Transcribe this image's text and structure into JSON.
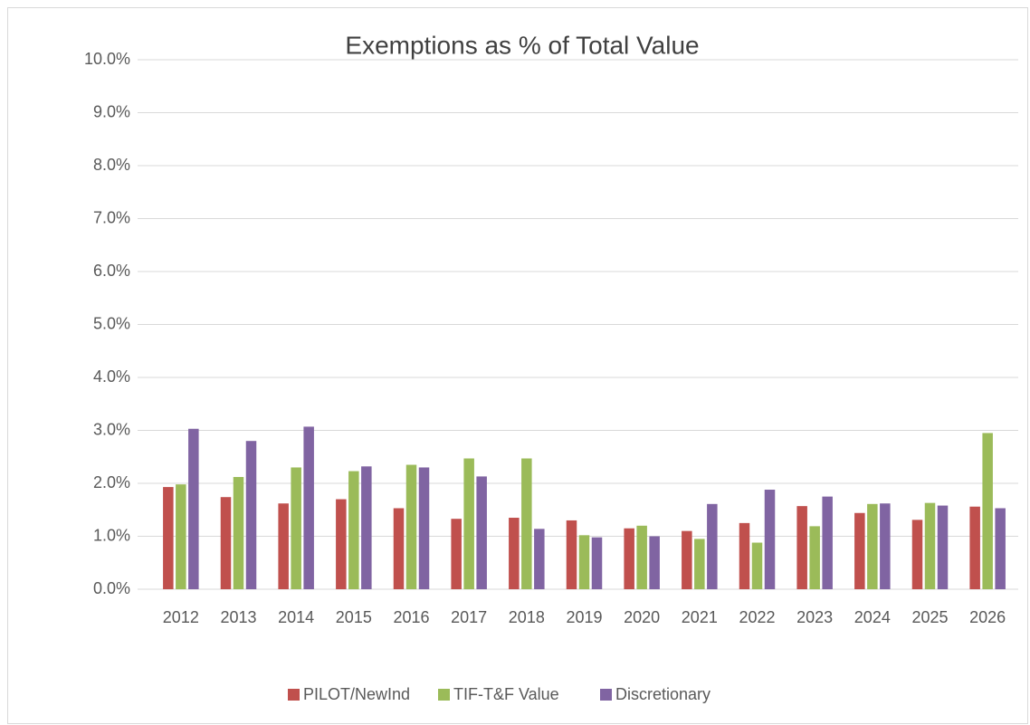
{
  "chart_data": {
    "type": "bar",
    "title": "Exemptions as % of Total Value",
    "categories": [
      "2012",
      "2013",
      "2014",
      "2015",
      "2016",
      "2017",
      "2018",
      "2019",
      "2020",
      "2021",
      "2022",
      "2023",
      "2024",
      "2025",
      "2026"
    ],
    "series": [
      {
        "name": "PILOT/NewInd",
        "color": "#c0504d",
        "values": [
          1.93,
          1.74,
          1.62,
          1.7,
          1.53,
          1.33,
          1.35,
          1.3,
          1.15,
          1.1,
          1.25,
          1.57,
          1.44,
          1.31,
          1.56
        ]
      },
      {
        "name": "TIF-T&F Value",
        "color": "#9bbb59",
        "values": [
          1.98,
          2.12,
          2.3,
          2.23,
          2.35,
          2.47,
          2.47,
          1.02,
          1.2,
          0.95,
          0.88,
          1.19,
          1.61,
          1.63,
          2.95
        ]
      },
      {
        "name": "Discretionary",
        "color": "#8064a2",
        "values": [
          3.03,
          2.8,
          3.07,
          2.32,
          2.3,
          2.13,
          1.14,
          0.98,
          1.0,
          1.61,
          1.88,
          1.75,
          1.62,
          1.58,
          1.53
        ]
      }
    ],
    "ylim": [
      0,
      10
    ],
    "yticks": [
      {
        "value": 0,
        "label": "0.0%"
      },
      {
        "value": 1,
        "label": "1.0%"
      },
      {
        "value": 2,
        "label": "2.0%"
      },
      {
        "value": 3,
        "label": "3.0%"
      },
      {
        "value": 4,
        "label": "4.0%"
      },
      {
        "value": 5,
        "label": "5.0%"
      },
      {
        "value": 6,
        "label": "6.0%"
      },
      {
        "value": 7,
        "label": "7.0%"
      },
      {
        "value": 8,
        "label": "8.0%"
      },
      {
        "value": 9,
        "label": "9.0%"
      },
      {
        "value": 10,
        "label": "10.0%"
      }
    ],
    "grid": true,
    "legend": "bottom"
  }
}
